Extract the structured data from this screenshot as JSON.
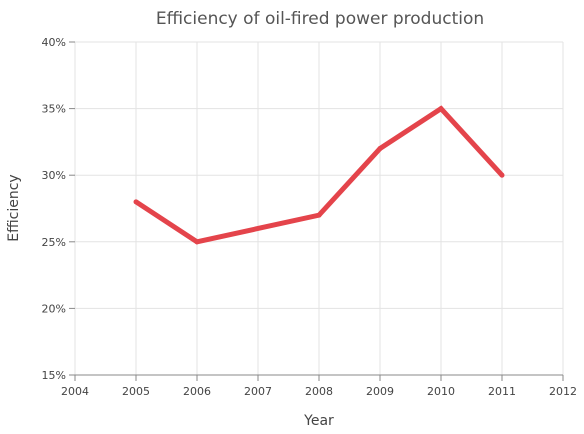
{
  "chart_data": {
    "type": "line",
    "title": "Efficiency of oil-fired power production",
    "xlabel": "Year",
    "ylabel": "Efficiency",
    "xlim": [
      2004,
      2012
    ],
    "ylim": [
      0.15,
      0.4
    ],
    "x_ticks": [
      "2004",
      "2005",
      "2006",
      "2007",
      "2008",
      "2009",
      "2010",
      "2011",
      "2012"
    ],
    "y_ticks": [
      "15%",
      "20%",
      "25%",
      "30%",
      "35%",
      "40%"
    ],
    "grid": true,
    "legend": "none",
    "series": [
      {
        "color": "#e4444b",
        "x": [
          2005,
          2006,
          2008,
          2009,
          2010,
          2011
        ],
        "y": [
          0.28,
          0.25,
          0.27,
          0.32,
          0.35,
          0.3
        ]
      }
    ]
  }
}
